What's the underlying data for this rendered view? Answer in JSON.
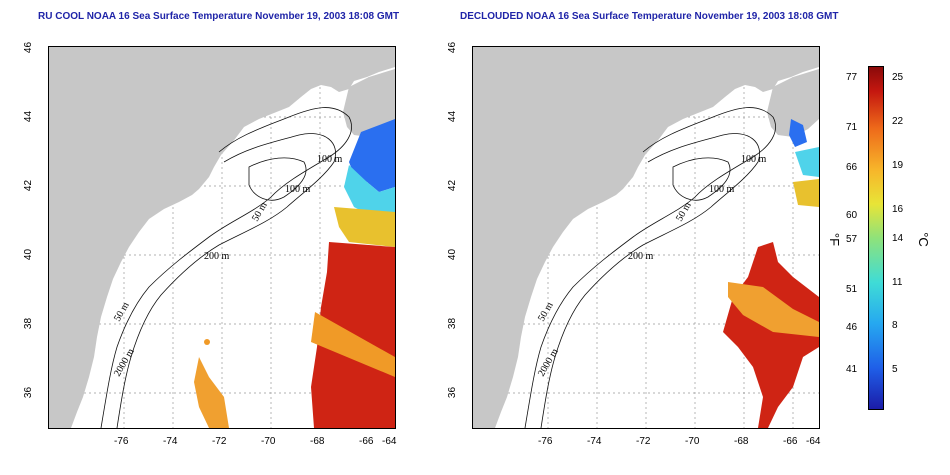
{
  "left_map": {
    "title": "RU COOL NOAA 16 Sea Surface Temperature November 19, 2003 18:08 GMT",
    "contours": [
      "100 m",
      "100 m",
      "50 m",
      "200 m",
      "50 m",
      "2000 m"
    ]
  },
  "right_map": {
    "title": "DECLOUDED NOAA 16 Sea Surface Temperature November 19, 2003 18:08 GMT",
    "contours": [
      "100 m",
      "100 m",
      "50 m",
      "200 m",
      "50 m",
      "2000 m"
    ]
  },
  "axes": {
    "lat_ticks": [
      "46",
      "44",
      "42",
      "40",
      "38",
      "36"
    ],
    "lon_ticks": [
      "-76",
      "-74",
      "-72",
      "-70",
      "-68",
      "-66",
      "-64"
    ]
  },
  "colorbar": {
    "fahrenheit_ticks": [
      "77",
      "71",
      "66",
      "60",
      "57",
      "51",
      "46",
      "41"
    ],
    "celsius_ticks": [
      "25",
      "22",
      "19",
      "16",
      "14",
      "11",
      "8",
      "5"
    ],
    "fahrenheit_label": "°F",
    "celsius_label": "°C"
  },
  "colors": {
    "land": "#c7c7c7",
    "title": "#1f24a8",
    "grid": "#999999"
  }
}
